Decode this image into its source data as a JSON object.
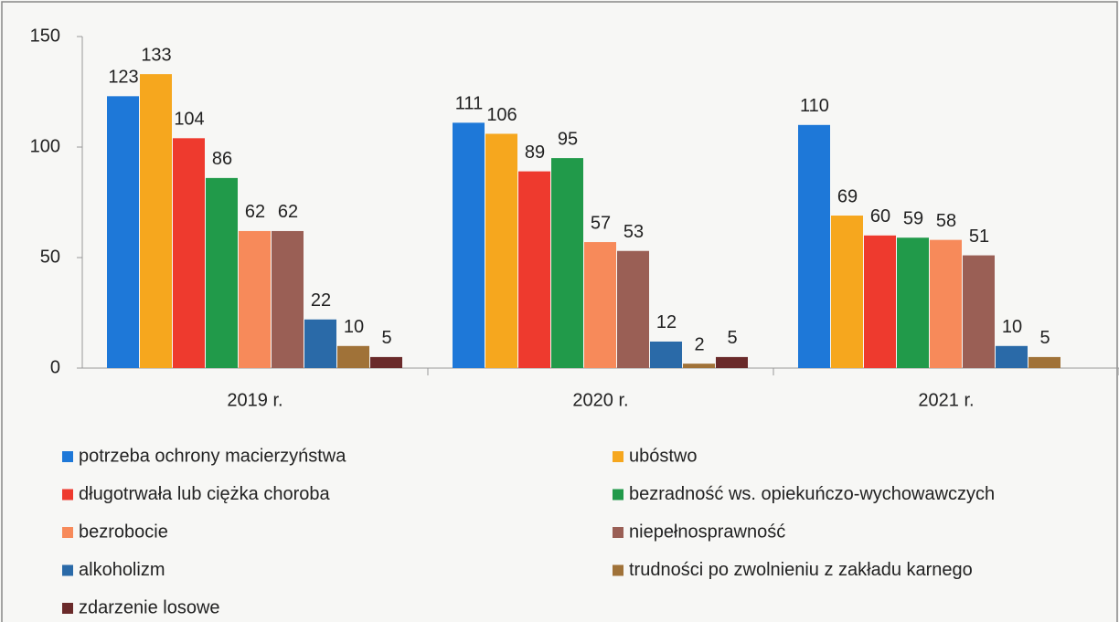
{
  "chart_data": {
    "type": "bar",
    "categories": [
      "2019 r.",
      "2020 r.",
      "2021 r."
    ],
    "series": [
      {
        "name": "potrzeba ochrony macierzyństwa",
        "color": "#1e78d8",
        "values": [
          123,
          111,
          110
        ]
      },
      {
        "name": "ubóstwo",
        "color": "#f6a71e",
        "values": [
          133,
          106,
          69
        ]
      },
      {
        "name": "długotrwała lub ciężka choroba",
        "color": "#ee3a2e",
        "values": [
          104,
          89,
          60
        ]
      },
      {
        "name": "bezradność ws. opiekuńczo-wychowawczych",
        "color": "#219a4a",
        "values": [
          86,
          95,
          59
        ]
      },
      {
        "name": "bezrobocie",
        "color": "#f78a5a",
        "values": [
          62,
          57,
          58
        ]
      },
      {
        "name": "niepełnosprawność",
        "color": "#9a5f55",
        "values": [
          62,
          53,
          51
        ]
      },
      {
        "name": "alkoholizm",
        "color": "#2a6aa8",
        "values": [
          22,
          12,
          10
        ]
      },
      {
        "name": "trudności po zwolnieniu z zakładu karnego",
        "color": "#a07238",
        "values": [
          10,
          2,
          5
        ]
      },
      {
        "name": "zdarzenie losowe",
        "color": "#6a2a2a",
        "values": [
          5,
          5,
          null
        ]
      }
    ],
    "ylim": [
      0,
      150
    ],
    "yticks": [
      0,
      50,
      100,
      150
    ],
    "grid": false
  }
}
